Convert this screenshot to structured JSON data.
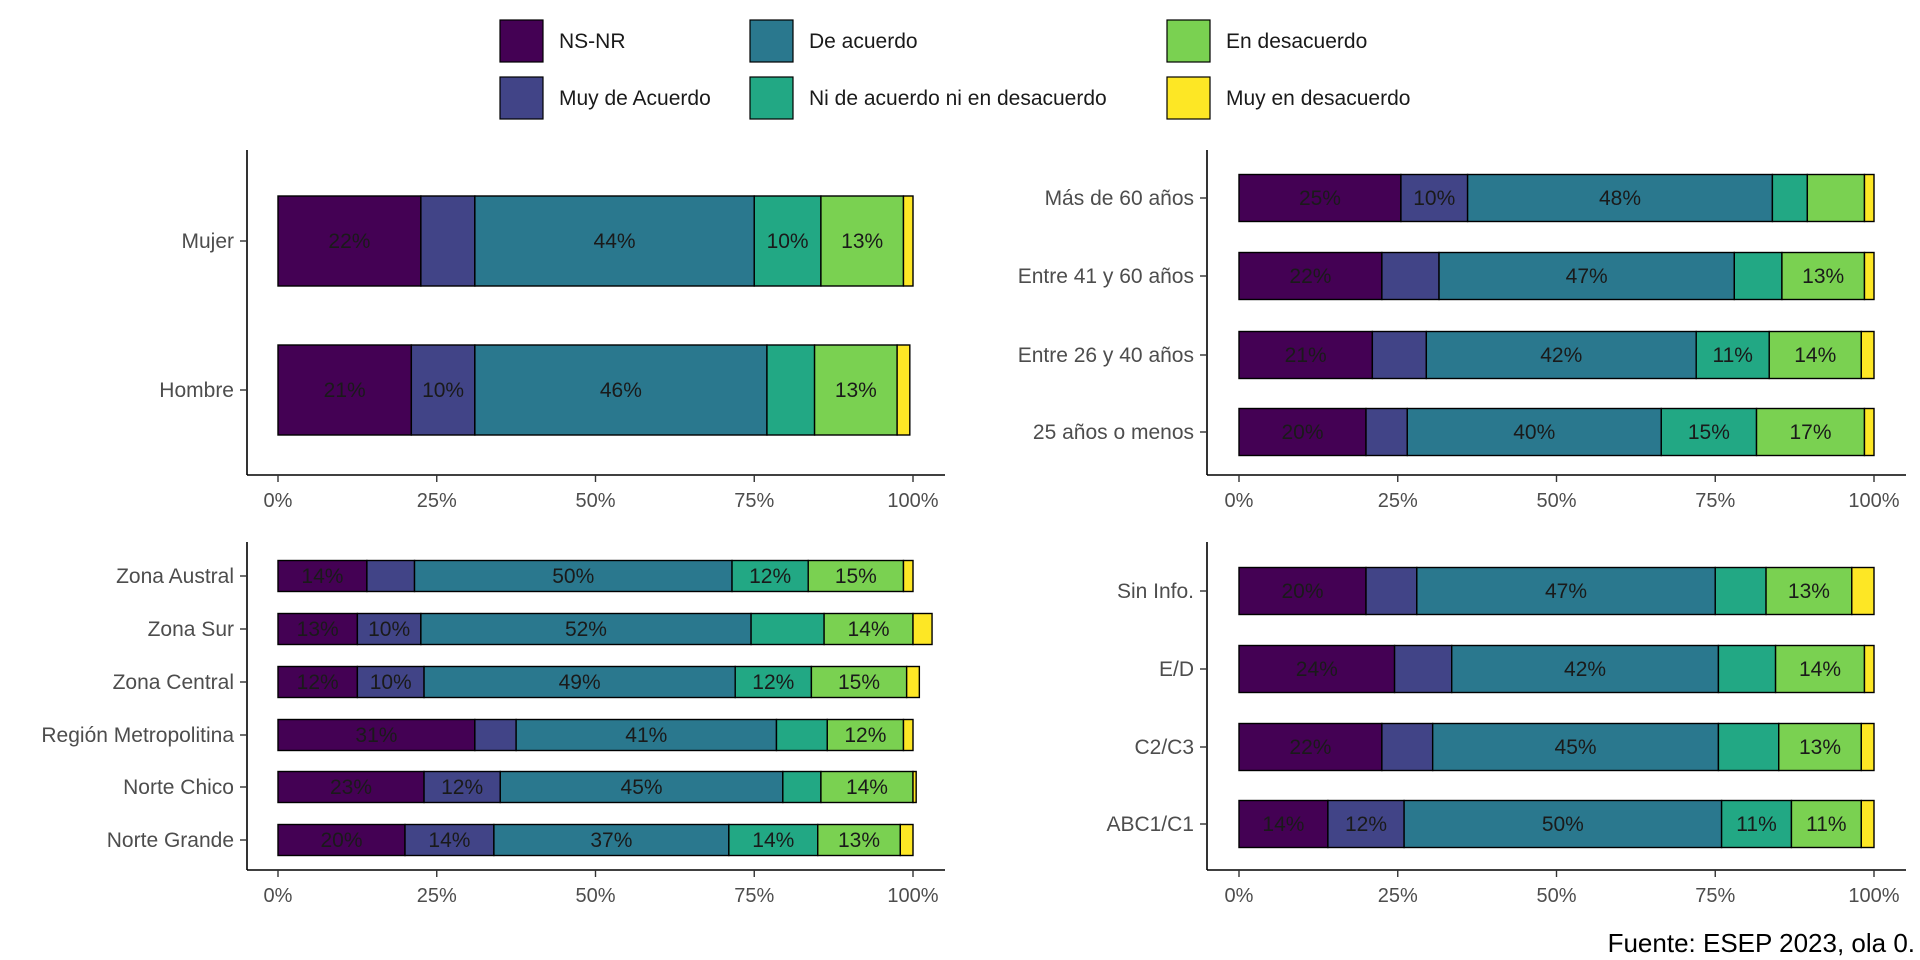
{
  "caption": "Fuente: ESEP 2023, ola 0.",
  "colors": {
    "NS-NR": "#440154",
    "Muy de Acuerdo": "#414487",
    "De acuerdo": "#2A788E",
    "Ni de acuerdo ni en desacuerdo": "#22A884",
    "En desacuerdo": "#7AD151",
    "Muy en desacuerdo": "#FDE725"
  },
  "chart_data": [
    {
      "type": "bar",
      "orientation": "horizontal",
      "stacked": true,
      "xlim": [
        0,
        100
      ],
      "xticks": [
        "0%",
        "25%",
        "50%",
        "75%",
        "100%"
      ],
      "legend_position": "top",
      "categories": [
        "Mujer",
        "Hombre"
      ],
      "series": [
        {
          "name": "NS-NR",
          "values": [
            22.5,
            21
          ]
        },
        {
          "name": "Muy de Acuerdo",
          "values": [
            8.5,
            10
          ]
        },
        {
          "name": "De acuerdo",
          "values": [
            44,
            46
          ]
        },
        {
          "name": "Ni de acuerdo ni en desacuerdo",
          "values": [
            10.5,
            7.5
          ]
        },
        {
          "name": "En desacuerdo",
          "values": [
            13,
            13
          ]
        },
        {
          "name": "Muy en desacuerdo",
          "values": [
            1.5,
            2
          ]
        }
      ],
      "labels": [
        [
          "22%",
          "",
          "44%",
          "10%",
          "13%",
          ""
        ],
        [
          "21%",
          "10%",
          "46%",
          "",
          "13%",
          ""
        ]
      ]
    },
    {
      "type": "bar",
      "orientation": "horizontal",
      "stacked": true,
      "xlim": [
        0,
        100
      ],
      "xticks": [
        "0%",
        "25%",
        "50%",
        "75%",
        "100%"
      ],
      "categories": [
        "Más de 60 años",
        "Entre 41 y 60 años",
        "Entre 26 y 40 años",
        "25 años o menos"
      ],
      "series": [
        {
          "name": "NS-NR",
          "values": [
            25.5,
            22.5,
            21,
            20
          ]
        },
        {
          "name": "Muy de Acuerdo",
          "values": [
            10.5,
            9,
            8.5,
            6.5
          ]
        },
        {
          "name": "De acuerdo",
          "values": [
            48,
            46.5,
            42.5,
            40
          ]
        },
        {
          "name": "Ni de acuerdo ni en desacuerdo",
          "values": [
            5.5,
            7.5,
            11.5,
            15
          ]
        },
        {
          "name": "En desacuerdo",
          "values": [
            9,
            13,
            14.5,
            17
          ]
        },
        {
          "name": "Muy en desacuerdo",
          "values": [
            1.5,
            1.5,
            2,
            1.5
          ]
        }
      ],
      "labels": [
        [
          "25%",
          "10%",
          "48%",
          "",
          "",
          ""
        ],
        [
          "22%",
          "",
          "47%",
          "",
          "13%",
          ""
        ],
        [
          "21%",
          "",
          "42%",
          "11%",
          "14%",
          ""
        ],
        [
          "20%",
          "",
          "40%",
          "15%",
          "17%",
          ""
        ]
      ]
    },
    {
      "type": "bar",
      "orientation": "horizontal",
      "stacked": true,
      "xlim": [
        0,
        100
      ],
      "xticks": [
        "0%",
        "25%",
        "50%",
        "75%",
        "100%"
      ],
      "categories": [
        "Zona Austral",
        "Zona Sur",
        "Zona Central",
        "Región Metropolitina",
        "Norte Chico",
        "Norte Grande"
      ],
      "series": [
        {
          "name": "NS-NR",
          "values": [
            14,
            12.5,
            12.5,
            31,
            23,
            20
          ]
        },
        {
          "name": "Muy de Acuerdo",
          "values": [
            7.5,
            10,
            10.5,
            6.5,
            12,
            14
          ]
        },
        {
          "name": "De acuerdo",
          "values": [
            50,
            52,
            49,
            41,
            44.5,
            37
          ]
        },
        {
          "name": "Ni de acuerdo ni en desacuerdo",
          "values": [
            12,
            11.5,
            12,
            8,
            6,
            14
          ]
        },
        {
          "name": "En desacuerdo",
          "values": [
            15,
            14,
            15,
            12,
            14.5,
            13
          ]
        },
        {
          "name": "Muy en desacuerdo",
          "values": [
            1.5,
            3,
            2,
            1.5,
            0.5,
            2
          ]
        }
      ],
      "labels": [
        [
          "14%",
          "",
          "50%",
          "12%",
          "15%",
          ""
        ],
        [
          "13%",
          "10%",
          "52%",
          "",
          "14%",
          ""
        ],
        [
          "12%",
          "10%",
          "49%",
          "12%",
          "15%",
          ""
        ],
        [
          "31%",
          "",
          "41%",
          "",
          "12%",
          ""
        ],
        [
          "23%",
          "12%",
          "45%",
          "",
          "14%",
          ""
        ],
        [
          "20%",
          "14%",
          "37%",
          "14%",
          "13%",
          ""
        ]
      ]
    },
    {
      "type": "bar",
      "orientation": "horizontal",
      "stacked": true,
      "xlim": [
        0,
        100
      ],
      "xticks": [
        "0%",
        "25%",
        "50%",
        "75%",
        "100%"
      ],
      "categories": [
        "Sin Info.",
        "E/D",
        "C2/C3",
        "ABC1/C1"
      ],
      "series": [
        {
          "name": "NS-NR",
          "values": [
            20,
            24.5,
            22.5,
            14
          ]
        },
        {
          "name": "Muy de Acuerdo",
          "values": [
            8,
            9,
            8,
            12
          ]
        },
        {
          "name": "De acuerdo",
          "values": [
            47,
            42,
            45,
            50
          ]
        },
        {
          "name": "Ni de acuerdo ni en desacuerdo",
          "values": [
            8,
            9,
            9.5,
            11
          ]
        },
        {
          "name": "En desacuerdo",
          "values": [
            13.5,
            14,
            13,
            11
          ]
        },
        {
          "name": "Muy en desacuerdo",
          "values": [
            3.5,
            1.5,
            2,
            2
          ]
        }
      ],
      "labels": [
        [
          "20%",
          "",
          "47%",
          "",
          "13%",
          ""
        ],
        [
          "24%",
          "",
          "42%",
          "",
          "14%",
          ""
        ],
        [
          "22%",
          "",
          "45%",
          "",
          "13%",
          ""
        ],
        [
          "14%",
          "12%",
          "50%",
          "11%",
          "11%",
          ""
        ]
      ]
    }
  ]
}
